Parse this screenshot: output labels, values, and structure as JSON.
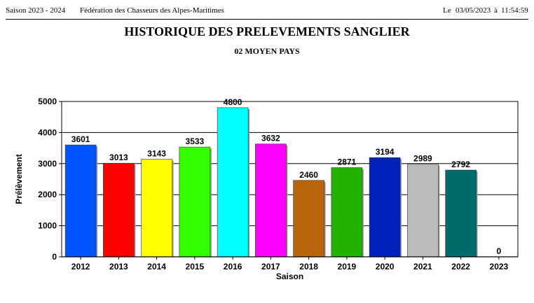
{
  "header": {
    "season": "Saison 2023 - 2024",
    "federation": "Fédération des Chasseurs des Alpes-Maritimes",
    "date_prefix": "Le",
    "date": "03/05/2023",
    "time_prefix": "à",
    "time": "11:54:59"
  },
  "chart_data": {
    "type": "bar",
    "title": "HISTORIQUE DES PRELEVEMENTS SANGLIER",
    "subtitle": "02 MOYEN PAYS",
    "xlabel": "Saison",
    "ylabel": "Prélèvement",
    "ylim": [
      0,
      5000
    ],
    "yticks": [
      0,
      1000,
      2000,
      3000,
      4000,
      5000
    ],
    "grid": true,
    "categories": [
      "2012",
      "2013",
      "2014",
      "2015",
      "2016",
      "2017",
      "2018",
      "2019",
      "2020",
      "2021",
      "2022",
      "2023"
    ],
    "values": [
      3601,
      3013,
      3143,
      3533,
      4800,
      3632,
      2460,
      2871,
      3194,
      2989,
      2792,
      0
    ],
    "colors": [
      "#0055ff",
      "#ff0000",
      "#ffff00",
      "#33ff00",
      "#00ffff",
      "#ff00ff",
      "#b8650b",
      "#22b300",
      "#0022bb",
      "#bbbbbb",
      "#006b6b",
      "#0055ff"
    ]
  }
}
